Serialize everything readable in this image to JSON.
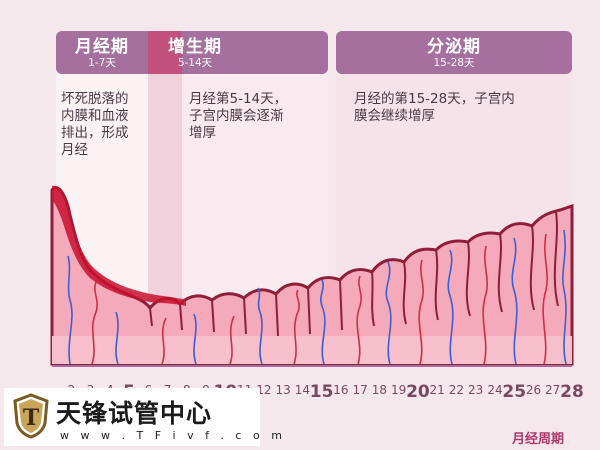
{
  "phases": [
    {
      "name": "月经期",
      "days": "1-7天",
      "description": [
        "坏死脱落的",
        "内膜和血液",
        "排出，形成",
        "月经"
      ]
    },
    {
      "name": "增生期",
      "days": "5-14天",
      "description": [
        "月经第5-14天，",
        "子宫内膜会逐渐",
        "增厚"
      ]
    },
    {
      "name": "分泌期",
      "days": "15-28天",
      "description": [
        "月经的第15-28天，子宫内",
        "膜会继续增厚"
      ]
    }
  ],
  "axis": {
    "ticks": [
      "2",
      "3",
      "4",
      "5",
      "6",
      "7",
      "8",
      "9",
      "10",
      "11",
      "12",
      "13",
      "14",
      "15",
      "16",
      "17",
      "18",
      "19",
      "20",
      "21",
      "22",
      "23",
      "24",
      "25",
      "26",
      "27",
      "28"
    ],
    "major_ticks": [
      "5",
      "10",
      "15",
      "20",
      "25",
      "28"
    ],
    "label": "月经周期"
  },
  "watermark": {
    "logo_letter": "T",
    "title": "天锋试管中心",
    "url": "w w w . T F i v f . c o m"
  },
  "colors": {
    "phase_purple": "#a5709e",
    "menstrual_highlight": "#c2527d",
    "endometrium_pink": "#f4aabb",
    "endometrium_outline": "#8f1e3a",
    "blood_red": "#c8102e",
    "vessel_blue": "#3c5fd1",
    "vessel_red": "#d12f3f"
  }
}
